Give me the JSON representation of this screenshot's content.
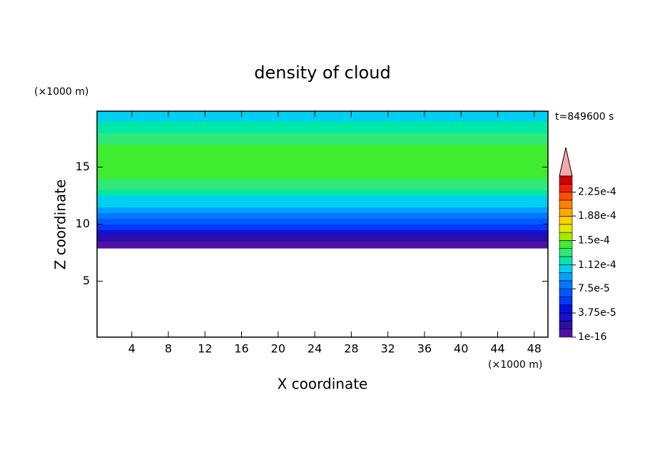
{
  "chart_data": {
    "type": "contour",
    "title": "density of cloud",
    "x_label": "X coordinate",
    "y_label": "Z coordinate",
    "x_unit": "(×1000 m)",
    "y_unit": "(×1000 m)",
    "time_label": "t=849600 s",
    "xlim": [
      0.2,
      49.5
    ],
    "ylim": [
      0.1,
      19.9
    ],
    "xticks": [
      4,
      8,
      12,
      16,
      20,
      24,
      28,
      32,
      36,
      40,
      44,
      48
    ],
    "yticks": [
      5,
      10,
      15
    ],
    "z_edges": [
      7.9,
      8.5,
      9,
      9.5,
      10,
      10.5,
      11,
      11.5,
      12,
      12.5,
      13,
      14,
      17,
      18,
      19,
      19.9
    ],
    "values": [
      5e-06,
      2e-05,
      3e-05,
      5e-05,
      6.5e-05,
      8e-05,
      9e-05,
      0.0001,
      0.000108,
      0.000118,
      0.00013,
      0.00014,
      0.00013,
      0.00012,
      0.00011
    ],
    "levels": [
      1e-16,
      1.25e-05,
      2.5e-05,
      3.75e-05,
      5e-05,
      6.25e-05,
      7.5e-05,
      8.75e-05,
      0.0001,
      0.0001125,
      0.000125,
      0.0001375,
      0.00015,
      0.0001625,
      0.000175,
      0.0001875,
      0.0002,
      0.0002125,
      0.000225,
      0.0002375,
      0.00025
    ],
    "colors": [
      "#5010a8",
      "#2a10a8",
      "#1a10c8",
      "#0010e0",
      "#0038ff",
      "#0058ff",
      "#0078ff",
      "#00a0ff",
      "#00d0f0",
      "#00e8a8",
      "#30e878",
      "#40ec30",
      "#a8e800",
      "#e8e800",
      "#ffd000",
      "#ffa800",
      "#ff8000",
      "#ff5000",
      "#f02000",
      "#d00000"
    ],
    "over_color": "#f4a8a8",
    "colorbar_ticks": [
      {
        "value": 1e-16,
        "label": "1e-16"
      },
      {
        "value": 3.75e-05,
        "label": "3.75e-5"
      },
      {
        "value": 7.5e-05,
        "label": "7.5e-5"
      },
      {
        "value": 0.000112,
        "label": "1.12e-4"
      },
      {
        "value": 0.00015,
        "label": "1.5e-4"
      },
      {
        "value": 0.000188,
        "label": "1.88e-4"
      },
      {
        "value": 0.000225,
        "label": "2.25e-4"
      }
    ]
  }
}
